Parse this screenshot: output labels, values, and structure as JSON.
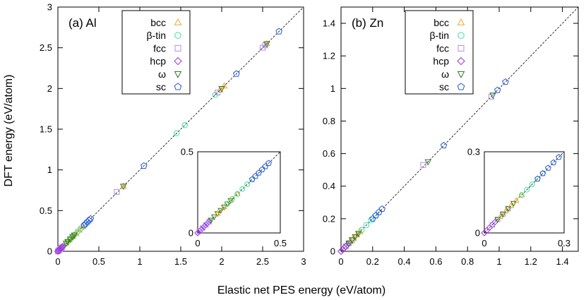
{
  "chart_data": {
    "type": "scatter",
    "xlabel": "Elastic net PES energy (eV/atom)",
    "ylabel": "DFT energy (eV/atom)",
    "legend_position": "top-left-inside",
    "series_styles": [
      {
        "name": "bcc",
        "marker": "triangle-up",
        "color": "#f5a623"
      },
      {
        "name": "β-tin",
        "marker": "circle",
        "color": "#3ee0a0"
      },
      {
        "name": "fcc",
        "marker": "square",
        "color": "#b08cf0"
      },
      {
        "name": "hcp",
        "marker": "diamond",
        "color": "#9b30d9"
      },
      {
        "name": "ω",
        "marker": "triangle-down",
        "color": "#2e7d1e"
      },
      {
        "name": "sc",
        "marker": "pentagon",
        "color": "#1f5ad8"
      }
    ],
    "panels": [
      {
        "title": "(a) Al",
        "xlim": [
          0,
          3
        ],
        "ylim": [
          0,
          3
        ],
        "xticks": [
          "0",
          "0.5",
          "1",
          "1.5",
          "2",
          "2.5",
          "3"
        ],
        "yticks": [
          "0",
          "0.5",
          "1",
          "1.5",
          "2",
          "2.5",
          "3"
        ],
        "xtick_values": [
          0,
          0.5,
          1,
          1.5,
          2,
          2.5,
          3
        ],
        "ytick_values": [
          0,
          0.5,
          1,
          1.5,
          2,
          2.5,
          3
        ],
        "diagonal": true,
        "series": [
          {
            "name": "bcc",
            "x": [
              0.1,
              0.14,
              0.18,
              0.22,
              0.26,
              0.3,
              0.8,
              1.98,
              2.03,
              2.55
            ],
            "y": [
              0.1,
              0.14,
              0.18,
              0.22,
              0.26,
              0.3,
              0.8,
              1.98,
              2.03,
              2.55
            ]
          },
          {
            "name": "β-tin",
            "x": [
              0.12,
              0.16,
              0.2,
              0.24,
              0.28,
              0.32,
              1.45,
              1.55,
              1.92
            ],
            "y": [
              0.12,
              0.16,
              0.2,
              0.24,
              0.28,
              0.32,
              1.45,
              1.55,
              1.92
            ]
          },
          {
            "name": "fcc",
            "x": [
              0.0,
              0.01,
              0.02,
              0.03,
              0.04,
              0.05,
              0.72,
              1.95,
              2.5,
              2.53
            ],
            "y": [
              0.0,
              0.01,
              0.02,
              0.03,
              0.04,
              0.05,
              0.73,
              1.95,
              2.5,
              2.53
            ]
          },
          {
            "name": "hcp",
            "x": [
              0.0,
              0.01,
              0.02,
              0.03,
              0.04,
              0.05,
              0.06
            ],
            "y": [
              0.0,
              0.01,
              0.02,
              0.03,
              0.04,
              0.05,
              0.06
            ]
          },
          {
            "name": "ω",
            "x": [
              0.1,
              0.12,
              0.15,
              0.18,
              0.2,
              0.8,
              2.0,
              2.55
            ],
            "y": [
              0.1,
              0.12,
              0.15,
              0.18,
              0.2,
              0.8,
              2.0,
              2.55
            ]
          },
          {
            "name": "sc",
            "x": [
              0.32,
              0.34,
              0.36,
              0.38,
              0.4,
              1.05,
              2.18,
              2.7
            ],
            "y": [
              0.32,
              0.34,
              0.36,
              0.38,
              0.4,
              1.05,
              2.18,
              2.7
            ]
          }
        ],
        "inset": {
          "xlim": [
            0,
            0.5
          ],
          "ylim": [
            0,
            0.5
          ],
          "xticks": [
            "0",
            "0.5"
          ],
          "yticks": [
            "0",
            "0.5"
          ],
          "xtick_values": [
            0,
            0.5
          ],
          "ytick_values": [
            0,
            0.5
          ],
          "series": [
            {
              "name": "hcp",
              "x": [
                0.0,
                0.01,
                0.02,
                0.03,
                0.04,
                0.05,
                0.06,
                0.07
              ],
              "y": [
                0.0,
                0.01,
                0.02,
                0.03,
                0.04,
                0.05,
                0.06,
                0.07
              ]
            },
            {
              "name": "fcc",
              "x": [
                0.01,
                0.03,
                0.05,
                0.07
              ],
              "y": [
                0.01,
                0.03,
                0.05,
                0.07
              ]
            },
            {
              "name": "ω",
              "x": [
                0.08,
                0.1,
                0.12,
                0.14,
                0.16,
                0.18,
                0.2
              ],
              "y": [
                0.08,
                0.1,
                0.12,
                0.14,
                0.16,
                0.18,
                0.2
              ]
            },
            {
              "name": "bcc",
              "x": [
                0.12,
                0.16,
                0.2,
                0.24
              ],
              "y": [
                0.12,
                0.16,
                0.2,
                0.24
              ]
            },
            {
              "name": "β-tin",
              "x": [
                0.18,
                0.21,
                0.24,
                0.27,
                0.3,
                0.33
              ],
              "y": [
                0.18,
                0.21,
                0.24,
                0.27,
                0.3,
                0.33
              ]
            },
            {
              "name": "sc",
              "x": [
                0.33,
                0.35,
                0.37,
                0.39,
                0.41,
                0.43
              ],
              "y": [
                0.33,
                0.35,
                0.37,
                0.39,
                0.41,
                0.43
              ]
            }
          ]
        }
      },
      {
        "title": "(b) Zn",
        "xlim": [
          0,
          1.5
        ],
        "ylim": [
          0,
          1.5
        ],
        "xticks": [
          "0",
          "0.2",
          "0.4",
          "0.6",
          "0.8",
          "1",
          "1.2",
          "1.4"
        ],
        "yticks": [
          "0",
          "0.2",
          "0.4",
          "0.6",
          "0.8",
          "1",
          "1.2",
          "1.4"
        ],
        "xtick_values": [
          0,
          0.2,
          0.4,
          0.6,
          0.8,
          1,
          1.2,
          1.4
        ],
        "ytick_values": [
          0,
          0.2,
          0.4,
          0.6,
          0.8,
          1,
          1.2,
          1.4
        ],
        "diagonal": true,
        "series": [
          {
            "name": "bcc",
            "x": [
              0.06,
              0.08,
              0.1,
              0.12
            ],
            "y": [
              0.06,
              0.08,
              0.1,
              0.12
            ]
          },
          {
            "name": "β-tin",
            "x": [
              0.13,
              0.16,
              0.19,
              0.22
            ],
            "y": [
              0.13,
              0.16,
              0.19,
              0.22
            ]
          },
          {
            "name": "fcc",
            "x": [
              0.03,
              0.05,
              0.07,
              0.52,
              0.95
            ],
            "y": [
              0.03,
              0.05,
              0.07,
              0.53,
              0.95
            ]
          },
          {
            "name": "hcp",
            "x": [
              0.0,
              0.01,
              0.02,
              0.03,
              0.04
            ],
            "y": [
              0.0,
              0.01,
              0.02,
              0.03,
              0.04
            ]
          },
          {
            "name": "ω",
            "x": [
              0.05,
              0.07,
              0.09,
              0.11,
              0.55,
              0.96
            ],
            "y": [
              0.05,
              0.07,
              0.09,
              0.11,
              0.55,
              0.96
            ]
          },
          {
            "name": "sc",
            "x": [
              0.2,
              0.22,
              0.24,
              0.26,
              0.65,
              0.99,
              1.04
            ],
            "y": [
              0.2,
              0.22,
              0.24,
              0.26,
              0.65,
              0.99,
              1.04
            ]
          }
        ],
        "inset": {
          "xlim": [
            0,
            0.3
          ],
          "ylim": [
            0,
            0.3
          ],
          "xticks": [
            "0",
            "0.3"
          ],
          "yticks": [
            "0",
            "0.3"
          ],
          "xtick_values": [
            0,
            0.3
          ],
          "ytick_values": [
            0,
            0.3
          ],
          "series": [
            {
              "name": "hcp",
              "x": [
                0.0,
                0.01,
                0.02,
                0.03,
                0.04
              ],
              "y": [
                0.0,
                0.01,
                0.02,
                0.03,
                0.04
              ]
            },
            {
              "name": "fcc",
              "x": [
                0.03,
                0.05,
                0.07,
                0.09
              ],
              "y": [
                0.03,
                0.05,
                0.07,
                0.09
              ]
            },
            {
              "name": "ω",
              "x": [
                0.05,
                0.07,
                0.09,
                0.11
              ],
              "y": [
                0.05,
                0.07,
                0.09,
                0.11
              ]
            },
            {
              "name": "bcc",
              "x": [
                0.06,
                0.08,
                0.1,
                0.12,
                0.14
              ],
              "y": [
                0.06,
                0.08,
                0.1,
                0.12,
                0.14
              ]
            },
            {
              "name": "β-tin",
              "x": [
                0.14,
                0.16,
                0.18,
                0.2,
                0.22
              ],
              "y": [
                0.14,
                0.16,
                0.18,
                0.2,
                0.22
              ]
            },
            {
              "name": "sc",
              "x": [
                0.2,
                0.22,
                0.24,
                0.26,
                0.28
              ],
              "y": [
                0.2,
                0.22,
                0.24,
                0.26,
                0.28
              ]
            }
          ]
        }
      }
    ]
  }
}
